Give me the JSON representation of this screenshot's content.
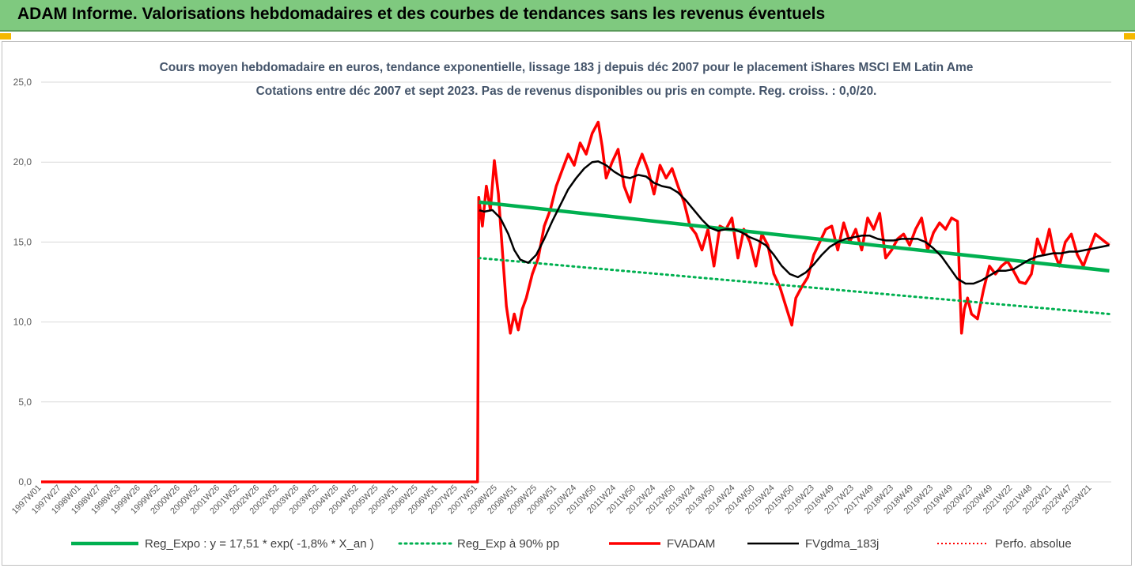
{
  "header": {
    "title": "ADAM Informe. Valorisations hebdomadaires et des courbes de tendances sans les revenus éventuels"
  },
  "colors": {
    "title_bar": "#7fc97f",
    "reg_expo": "#00b050",
    "fvadam": "#ff0000",
    "fvgdma": "#000000",
    "perfo": "#ff0000"
  },
  "chart_data": {
    "type": "line",
    "title": "Cours moyen hebdomadaire en euros, tendance exponentielle, lissage 183 j depuis déc 2007 pour le placement iShares MSCI EM Latin Ame",
    "subtitle": "Cotations entre déc 2007 et sept 2023. Pas de revenus disponibles ou pris en compte. Reg. croiss. : 0,0/20.",
    "xlabel": "",
    "ylabel": "",
    "ylim": [
      0,
      25
    ],
    "yticks": [
      "0,0",
      "5,0",
      "10,0",
      "15,0",
      "20,0",
      "25,0"
    ],
    "x_range": [
      1997.0,
      2023.8
    ],
    "x_tick_labels": [
      "1997W01",
      "1997W27",
      "1998W01",
      "1998W27",
      "1998W53",
      "1999W26",
      "1999W52",
      "2000W26",
      "2000W52",
      "2001W26",
      "2001W52",
      "2002W26",
      "2002W52",
      "2003W26",
      "2003W52",
      "2004W26",
      "2004W52",
      "2005W25",
      "2005W51",
      "2006W25",
      "2006W51",
      "2007W25",
      "2007W51",
      "2008W25",
      "2008W51",
      "2009W25",
      "2009W51",
      "2010W24",
      "2010W50",
      "2011W24",
      "2011W50",
      "2012W24",
      "2012W50",
      "2013W24",
      "2013W50",
      "2014W24",
      "2014W50",
      "2015W24",
      "2015W50",
      "2016W23",
      "2016W49",
      "2017W23",
      "2017W49",
      "2018W23",
      "2018W49",
      "2019W23",
      "2019W49",
      "2020W23",
      "2020W49",
      "2021W22",
      "2021W48",
      "2022W21",
      "2022W47",
      "2023W21"
    ],
    "grid": "horizontal",
    "legend_position": "bottom",
    "series": [
      {
        "name": "Reg_Expo : y = 17,51 * exp( -1,8% * X_an )",
        "style": "solid-thick",
        "x": [
          2007.96,
          2023.75
        ],
        "y": [
          17.5,
          13.2
        ]
      },
      {
        "name": "Reg_Exp à 90% pp",
        "style": "dotted",
        "x": [
          2007.96,
          2023.75
        ],
        "y": [
          14.0,
          10.5
        ]
      },
      {
        "name": "FVADAM",
        "style": "solid-thick",
        "x": [
          1997.0,
          2007.93,
          2007.96,
          2008.05,
          2008.15,
          2008.25,
          2008.35,
          2008.45,
          2008.55,
          2008.65,
          2008.75,
          2008.85,
          2008.95,
          2009.05,
          2009.15,
          2009.3,
          2009.45,
          2009.6,
          2009.75,
          2009.9,
          2010.05,
          2010.2,
          2010.35,
          2010.5,
          2010.65,
          2010.8,
          2010.95,
          2011.05,
          2011.15,
          2011.3,
          2011.45,
          2011.6,
          2011.75,
          2011.9,
          2012.05,
          2012.2,
          2012.35,
          2012.5,
          2012.65,
          2012.8,
          2012.95,
          2013.1,
          2013.25,
          2013.4,
          2013.55,
          2013.7,
          2013.85,
          2014.0,
          2014.15,
          2014.3,
          2014.45,
          2014.6,
          2014.75,
          2014.9,
          2015.05,
          2015.2,
          2015.35,
          2015.5,
          2015.65,
          2015.8,
          2015.9,
          2016.05,
          2016.2,
          2016.35,
          2016.5,
          2016.65,
          2016.8,
          2016.95,
          2017.1,
          2017.25,
          2017.4,
          2017.55,
          2017.7,
          2017.85,
          2018.0,
          2018.15,
          2018.3,
          2018.45,
          2018.6,
          2018.75,
          2018.9,
          2019.05,
          2019.2,
          2019.35,
          2019.5,
          2019.65,
          2019.8,
          2019.95,
          2020.05,
          2020.12,
          2020.2,
          2020.3,
          2020.45,
          2020.6,
          2020.75,
          2020.9,
          2021.05,
          2021.2,
          2021.35,
          2021.5,
          2021.65,
          2021.8,
          2021.95,
          2022.1,
          2022.25,
          2022.35,
          2022.5,
          2022.65,
          2022.8,
          2022.95,
          2023.1,
          2023.25,
          2023.4,
          2023.55,
          2023.75
        ],
        "y": [
          0,
          0,
          17.8,
          16.0,
          18.5,
          17.0,
          20.1,
          18.0,
          14.5,
          11.0,
          9.3,
          10.5,
          9.5,
          10.8,
          11.5,
          13.0,
          14.0,
          16.0,
          17.0,
          18.5,
          19.5,
          20.5,
          19.8,
          21.2,
          20.5,
          21.8,
          22.5,
          21.0,
          19.0,
          20.0,
          20.8,
          18.5,
          17.5,
          19.5,
          20.5,
          19.5,
          18.0,
          19.8,
          19.0,
          19.6,
          18.5,
          17.5,
          16.0,
          15.5,
          14.5,
          15.8,
          13.5,
          16.0,
          15.8,
          16.5,
          14.0,
          15.8,
          15.0,
          13.5,
          15.5,
          14.8,
          13.0,
          12.2,
          11.0,
          9.8,
          11.5,
          12.2,
          12.8,
          14.2,
          15.0,
          15.8,
          16.0,
          14.5,
          16.2,
          15.0,
          15.8,
          14.5,
          16.5,
          15.8,
          16.8,
          14.0,
          14.5,
          15.2,
          15.5,
          14.8,
          15.8,
          16.5,
          14.5,
          15.6,
          16.2,
          15.8,
          16.5,
          16.3,
          9.3,
          10.8,
          11.5,
          10.5,
          10.2,
          12.0,
          13.5,
          13.0,
          13.5,
          13.8,
          13.2,
          12.5,
          12.4,
          13.0,
          15.2,
          14.2,
          15.8,
          14.5,
          13.5,
          15.0,
          15.5,
          14.2,
          13.5,
          14.5,
          15.5,
          15.2,
          14.8
        ]
      },
      {
        "name": "FVgdma_183j",
        "style": "solid",
        "x": [
          2007.96,
          2008.1,
          2008.3,
          2008.5,
          2008.7,
          2008.85,
          2009.0,
          2009.2,
          2009.4,
          2009.6,
          2009.8,
          2010.0,
          2010.2,
          2010.4,
          2010.6,
          2010.8,
          2010.95,
          2011.15,
          2011.35,
          2011.55,
          2011.75,
          2011.95,
          2012.15,
          2012.35,
          2012.55,
          2012.75,
          2012.95,
          2013.15,
          2013.35,
          2013.55,
          2013.75,
          2013.95,
          2014.15,
          2014.35,
          2014.55,
          2014.75,
          2014.95,
          2015.15,
          2015.35,
          2015.55,
          2015.75,
          2015.95,
          2016.15,
          2016.35,
          2016.55,
          2016.75,
          2016.95,
          2017.15,
          2017.35,
          2017.55,
          2017.75,
          2017.95,
          2018.15,
          2018.35,
          2018.55,
          2018.75,
          2018.95,
          2019.15,
          2019.35,
          2019.55,
          2019.75,
          2019.95,
          2020.15,
          2020.35,
          2020.55,
          2020.75,
          2020.95,
          2021.15,
          2021.35,
          2021.55,
          2021.75,
          2021.95,
          2022.15,
          2022.35,
          2022.55,
          2022.75,
          2022.95,
          2023.15,
          2023.35,
          2023.55,
          2023.75
        ],
        "y": [
          17.0,
          16.9,
          17.0,
          16.5,
          15.5,
          14.5,
          13.9,
          13.7,
          14.2,
          15.2,
          16.3,
          17.3,
          18.3,
          19.0,
          19.6,
          20.0,
          20.05,
          19.8,
          19.4,
          19.1,
          19.0,
          19.2,
          19.1,
          18.7,
          18.5,
          18.4,
          18.1,
          17.6,
          17.0,
          16.4,
          15.9,
          15.7,
          15.8,
          15.8,
          15.6,
          15.3,
          15.1,
          14.8,
          14.2,
          13.5,
          13.0,
          12.8,
          13.1,
          13.6,
          14.2,
          14.7,
          15.0,
          15.2,
          15.3,
          15.4,
          15.4,
          15.2,
          15.1,
          15.1,
          15.2,
          15.2,
          15.2,
          15.0,
          14.6,
          14.1,
          13.4,
          12.7,
          12.4,
          12.4,
          12.6,
          12.9,
          13.2,
          13.2,
          13.3,
          13.6,
          13.9,
          14.1,
          14.2,
          14.3,
          14.3,
          14.4,
          14.4,
          14.5,
          14.6,
          14.7,
          14.8
        ]
      },
      {
        "name": "Perfo. absolue",
        "style": "dotted",
        "x": [
          1997.0,
          2007.93,
          2007.96
        ],
        "y": [
          0,
          0,
          17.5
        ]
      }
    ]
  }
}
